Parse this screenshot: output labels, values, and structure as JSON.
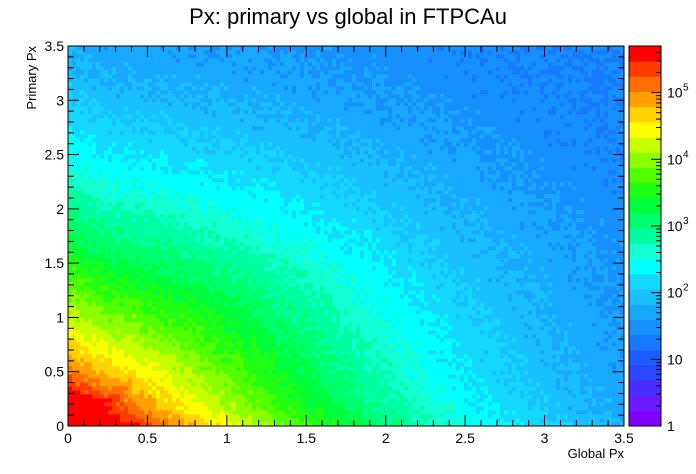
{
  "chart_data": {
    "type": "heatmap",
    "title": "Px: primary vs global in FTPCAu",
    "xlabel": "Global Px",
    "ylabel": "Primary Px",
    "xlim": [
      0,
      3.5
    ],
    "ylim": [
      0,
      3.5
    ],
    "x_ticks": [
      "0",
      "0.5",
      "1",
      "1.5",
      "2",
      "2.5",
      "3",
      "3.5"
    ],
    "y_ticks": [
      "0",
      "0.5",
      "1",
      "1.5",
      "2",
      "2.5",
      "3",
      "3.5"
    ],
    "x_tick_values": [
      0,
      0.5,
      1,
      1.5,
      2,
      2.5,
      3,
      3.5
    ],
    "y_tick_values": [
      0,
      0.5,
      1,
      1.5,
      2,
      2.5,
      3,
      3.5
    ],
    "z_scale": "log",
    "zlim": [
      1,
      500000
    ],
    "colorbar": {
      "labels": [
        {
          "base": "1",
          "exp": "",
          "value": 1
        },
        {
          "base": "10",
          "exp": "",
          "value": 10
        },
        {
          "base": "10",
          "exp": "2",
          "value": 100
        },
        {
          "base": "10",
          "exp": "3",
          "value": 1000
        },
        {
          "base": "10",
          "exp": "4",
          "value": 10000
        },
        {
          "base": "10",
          "exp": "5",
          "value": 100000
        }
      ],
      "colors": [
        "#7f00ff",
        "#6a1bff",
        "#4a2dff",
        "#2d46ff",
        "#1e5cff",
        "#1878ff",
        "#1790ff",
        "#19a8ff",
        "#18c0ff",
        "#14d8ff",
        "#00ffff",
        "#14ffd2",
        "#00ffa0",
        "#00ff6e",
        "#00ff3c",
        "#1eff14",
        "#50ff00",
        "#8cff00",
        "#c8ff00",
        "#ffff00",
        "#ffd200",
        "#ffa000",
        "#ff6e00",
        "#ff3c00",
        "#ff0000"
      ]
    },
    "density_model": "approximate: counts ~ 2.5e5 near (0.1,0.1), falling to ~1 at large x and y; ridge along low Primary Px and along low Global Px"
  }
}
